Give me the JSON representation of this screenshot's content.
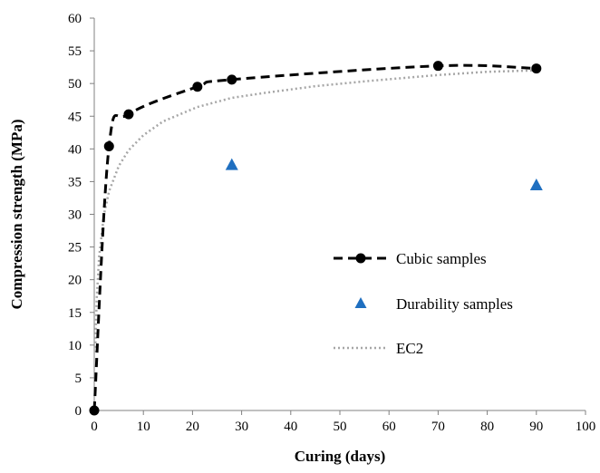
{
  "chart_data": {
    "type": "scatter",
    "xlabel": "Curing (days)",
    "ylabel": "Compression strength (MPa)",
    "xlim": [
      0,
      100
    ],
    "ylim": [
      0,
      60
    ],
    "x_ticks": [
      0,
      10,
      20,
      30,
      40,
      50,
      60,
      70,
      80,
      90,
      100
    ],
    "y_ticks": [
      0,
      5,
      10,
      15,
      20,
      25,
      30,
      35,
      40,
      45,
      50,
      55,
      60
    ],
    "grid": false,
    "legend_position": "right",
    "series": [
      {
        "name": "Cubic samples",
        "style": "dashed-line-with-circle-markers",
        "color": "#000000",
        "points": [
          [
            0,
            0
          ],
          [
            3,
            40.4
          ],
          [
            7,
            45.3
          ],
          [
            21,
            49.5
          ],
          [
            28,
            50.6
          ],
          [
            70,
            52.7
          ],
          [
            90,
            52.3
          ]
        ]
      },
      {
        "name": "Durability samples",
        "style": "triangle-markers",
        "color": "#1F6FC0",
        "points": [
          [
            28,
            37.6
          ],
          [
            90,
            34.5
          ]
        ]
      },
      {
        "name": "EC2",
        "style": "dotted-line",
        "color": "#A6A6A6",
        "points": [
          [
            0.2,
            8.9
          ],
          [
            0.5,
            17.1
          ],
          [
            1,
            23.6
          ],
          [
            2,
            30.0
          ],
          [
            3,
            33.5
          ],
          [
            5,
            37.4
          ],
          [
            7,
            39.8
          ],
          [
            10,
            42.1
          ],
          [
            14,
            44.2
          ],
          [
            21,
            46.4
          ],
          [
            28,
            47.8
          ],
          [
            35,
            48.6
          ],
          [
            45,
            49.6
          ],
          [
            56,
            50.4
          ],
          [
            70,
            51.3
          ],
          [
            80,
            51.8
          ],
          [
            90,
            52.0
          ]
        ]
      }
    ]
  }
}
